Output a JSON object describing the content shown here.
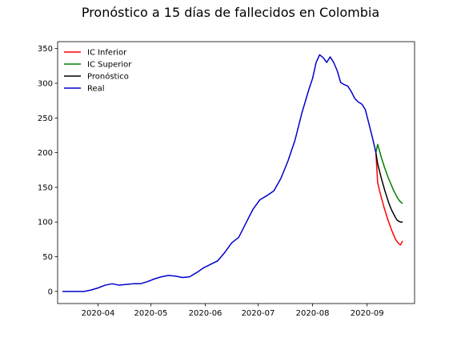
{
  "chart_data": {
    "type": "line",
    "title": "Pronóstico a 15 días de fallecidos en Colombia",
    "xlabel": "",
    "ylabel": "",
    "x_range": [
      "2020-03-09",
      "2020-09-28"
    ],
    "ylim": [
      -17.5,
      360
    ],
    "x_ticks": [
      "2020-04-01",
      "2020-05-01",
      "2020-06-01",
      "2020-07-01",
      "2020-08-01",
      "2020-09-01"
    ],
    "x_tick_labels": [
      "2020-04",
      "2020-05",
      "2020-06",
      "2020-07",
      "2020-08",
      "2020-09"
    ],
    "y_ticks": [
      0,
      50,
      100,
      150,
      200,
      250,
      300,
      350
    ],
    "y_tick_labels": [
      "0",
      "50",
      "100",
      "150",
      "200",
      "250",
      "300",
      "350"
    ],
    "grid": false,
    "legend_position": "top-left",
    "series": [
      {
        "name": "IC Inferior",
        "color": "#ff0000",
        "x": [
          "2020-09-06",
          "2020-09-07",
          "2020-09-08",
          "2020-09-09",
          "2020-09-10",
          "2020-09-11",
          "2020-09-12",
          "2020-09-13",
          "2020-09-14",
          "2020-09-15",
          "2020-09-16",
          "2020-09-17",
          "2020-09-18",
          "2020-09-19",
          "2020-09-20",
          "2020-09-21"
        ],
        "y": [
          200,
          157,
          146,
          136,
          127,
          118,
          110,
          102,
          95,
          88,
          82,
          76,
          72,
          69,
          67,
          72
        ]
      },
      {
        "name": "IC Superior",
        "color": "#008000",
        "x": [
          "2020-09-06",
          "2020-09-07",
          "2020-09-08",
          "2020-09-09",
          "2020-09-10",
          "2020-09-11",
          "2020-09-12",
          "2020-09-13",
          "2020-09-14",
          "2020-09-15",
          "2020-09-16",
          "2020-09-17",
          "2020-09-18",
          "2020-09-19",
          "2020-09-20",
          "2020-09-21"
        ],
        "y": [
          200,
          212,
          203,
          194,
          186,
          178,
          171,
          164,
          158,
          152,
          146,
          141,
          136,
          132,
          129,
          127
        ]
      },
      {
        "name": "Pronóstico",
        "color": "#000000",
        "x": [
          "2020-09-06",
          "2020-09-07",
          "2020-09-08",
          "2020-09-09",
          "2020-09-10",
          "2020-09-11",
          "2020-09-12",
          "2020-09-13",
          "2020-09-14",
          "2020-09-15",
          "2020-09-16",
          "2020-09-17",
          "2020-09-18",
          "2020-09-19",
          "2020-09-20",
          "2020-09-21"
        ],
        "y": [
          200,
          184,
          174,
          164,
          155,
          146,
          138,
          130,
          123,
          117,
          112,
          107,
          103,
          101,
          100,
          100
        ]
      },
      {
        "name": "Real",
        "color": "#0000cc",
        "x": [
          "2020-03-12",
          "2020-03-16",
          "2020-03-20",
          "2020-03-24",
          "2020-03-28",
          "2020-04-01",
          "2020-04-05",
          "2020-04-09",
          "2020-04-13",
          "2020-04-17",
          "2020-04-21",
          "2020-04-25",
          "2020-04-29",
          "2020-05-03",
          "2020-05-07",
          "2020-05-11",
          "2020-05-15",
          "2020-05-19",
          "2020-05-23",
          "2020-05-27",
          "2020-05-31",
          "2020-06-04",
          "2020-06-08",
          "2020-06-12",
          "2020-06-16",
          "2020-06-20",
          "2020-06-24",
          "2020-06-28",
          "2020-07-02",
          "2020-07-06",
          "2020-07-10",
          "2020-07-14",
          "2020-07-18",
          "2020-07-22",
          "2020-07-26",
          "2020-07-30",
          "2020-08-01",
          "2020-08-03",
          "2020-08-05",
          "2020-08-07",
          "2020-08-09",
          "2020-08-11",
          "2020-08-13",
          "2020-08-15",
          "2020-08-17",
          "2020-08-19",
          "2020-08-21",
          "2020-08-23",
          "2020-08-25",
          "2020-08-27",
          "2020-08-29",
          "2020-08-31",
          "2020-09-02",
          "2020-09-04",
          "2020-09-06"
        ],
        "y": [
          0,
          0,
          0,
          0,
          2,
          5,
          9,
          11,
          9,
          10,
          11,
          11,
          14,
          18,
          21,
          23,
          22,
          20,
          21,
          27,
          34,
          39,
          44,
          56,
          70,
          78,
          98,
          118,
          132,
          138,
          145,
          163,
          188,
          218,
          258,
          292,
          307,
          330,
          341,
          337,
          330,
          338,
          330,
          318,
          301,
          298,
          296,
          288,
          278,
          273,
          270,
          262,
          242,
          222,
          200
        ]
      }
    ]
  }
}
